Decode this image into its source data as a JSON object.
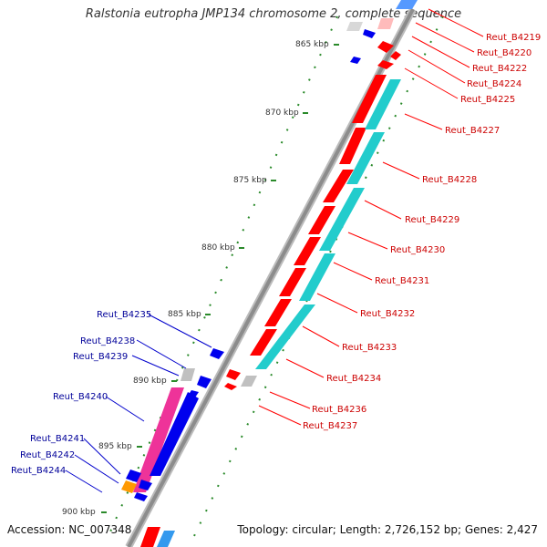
{
  "title": "Ralstonia eutropha JMP134 chromosome 2, complete sequence",
  "accession_label": "Accession: NC_007348",
  "topology_label": "Topology: circular; Length: 2,726,152 bp; Genes: 2,427",
  "kbp_ticks": [
    "865 kbp",
    "870 kbp",
    "875 kbp",
    "880 kbp",
    "885 kbp",
    "890 kbp",
    "895 kbp",
    "900 kbp"
  ],
  "genes_minus": [
    "Reut_B4235",
    "Reut_B4238",
    "Reut_B4239",
    "Reut_B4240",
    "Reut_B4241",
    "Reut_B4242",
    "Reut_B4244"
  ],
  "genes_plus": [
    "Reut_B4219",
    "Reut_B4220",
    "Reut_B4222",
    "Reut_B4224",
    "Reut_B4225",
    "Reut_B4227",
    "Reut_B4228",
    "Reut_B4229",
    "Reut_B4230",
    "Reut_B4231",
    "Reut_B4232",
    "Reut_B4233",
    "Reut_B4234",
    "Reut_B4236",
    "Reut_B4237"
  ],
  "colors": {
    "backbone": "#8c8c8c",
    "gene_red": "#ff0000",
    "gene_cyan": "#22cccc",
    "gene_blue": "#0000ee",
    "gene_magenta": "#ee3399",
    "gene_orange": "#ff9900",
    "gene_gray": "#c0c0c0",
    "label_red": "#cc0000",
    "label_blue": "#000099",
    "tick_green": "#2a8a2a"
  }
}
